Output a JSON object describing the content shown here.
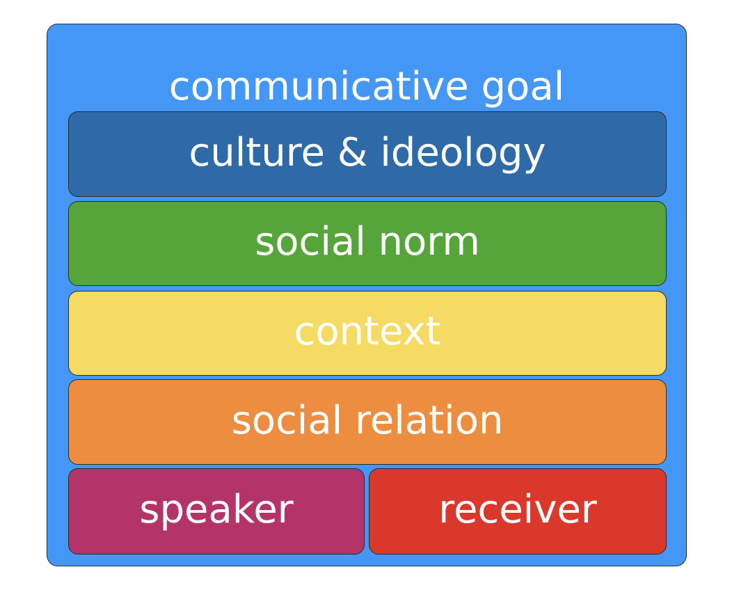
{
  "diagram": {
    "outer": {
      "label": "communicative goal",
      "color": "#4497f4"
    },
    "layers": [
      {
        "label": "culture & ideology",
        "color": "#2f6aa8"
      },
      {
        "label": "social norm",
        "color": "#55a53a"
      },
      {
        "label": "context",
        "color": "#f5db64"
      },
      {
        "label": "social relation",
        "color": "#ed8d3f"
      }
    ],
    "bottom": [
      {
        "label": "speaker",
        "color": "#b43469"
      },
      {
        "label": "receiver",
        "color": "#d9382a"
      }
    ]
  }
}
